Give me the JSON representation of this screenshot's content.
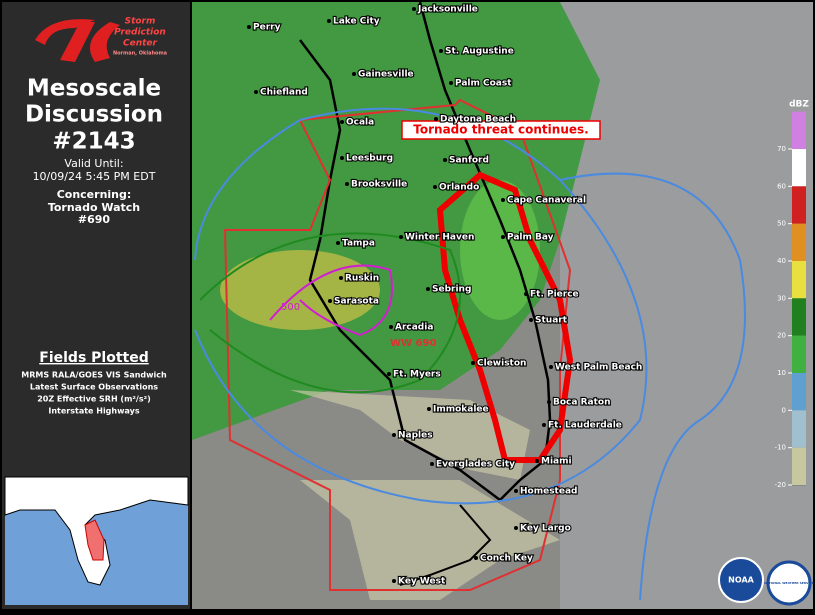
{
  "header": {
    "logo_line1": "Storm",
    "logo_line2": "Prediction",
    "logo_line3": "Center",
    "logo_sub": "Norman, Oklahoma",
    "title_line1": "Mesoscale",
    "title_line2": "Discussion",
    "number": "#2143",
    "valid_label": "Valid Until:",
    "valid_time": "10/09/24 5:45 PM EDT",
    "concerning_label": "Concerning:",
    "concerning_line1": "Tornado Watch",
    "concerning_line2": "#690"
  },
  "fields": {
    "title": "Fields Plotted",
    "items": [
      "MRMS RALA/GOES VIS Sandwich",
      "Latest Surface Observations",
      "20Z Effective SRH (m²/s²)",
      "Interstate Highways"
    ]
  },
  "map": {
    "headline": "Tornado threat continues.",
    "watch_label": "WW 690",
    "srh_label": "500",
    "cities": [
      "Perry",
      "Lake City",
      "Jacksonville",
      "St. Augustine",
      "Gainesville",
      "Palm Coast",
      "Chiefland",
      "Ocala",
      "Daytona Beach",
      "Leesburg",
      "Sanford",
      "Brooksville",
      "Orlando",
      "Cape Canaveral",
      "Tampa",
      "Winter Haven",
      "Palm Bay",
      "Ruskin",
      "Sarasota",
      "Sebring",
      "Ft. Pierce",
      "Stuart",
      "Arcadia",
      "Clewiston",
      "West Palm Beach",
      "Ft. Myers",
      "Boca Raton",
      "Immokalee",
      "Ft. Lauderdale",
      "Naples",
      "Everglades City",
      "Miami",
      "Homestead",
      "Key Largo",
      "Conch Key",
      "Key West"
    ]
  },
  "legend": {
    "unit": "dBZ",
    "ticks": [
      70,
      60,
      50,
      40,
      30,
      20,
      10,
      0,
      -10,
      -20
    ]
  },
  "logos": {
    "noaa": "NOAA",
    "nws": "NATIONAL WEATHER SERVICE"
  }
}
